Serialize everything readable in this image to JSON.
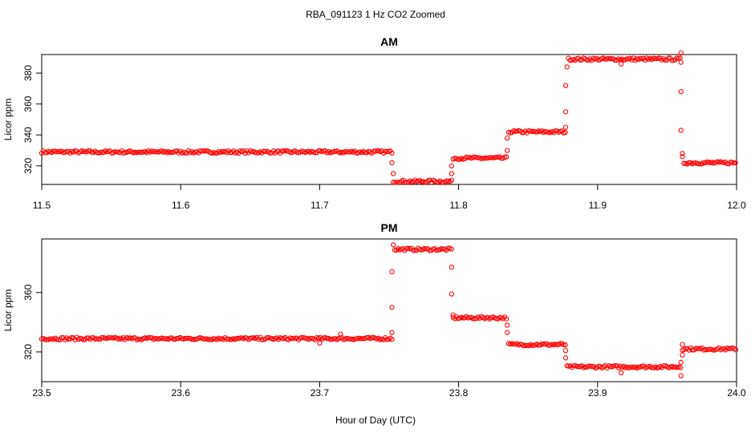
{
  "figure": {
    "title": "RBA_091123  1 Hz CO2 Zoomed",
    "xlabel": "Hour of Day (UTC)"
  },
  "colors": {
    "points": "#ff0000",
    "axes": "#000000",
    "background": "#ffffff"
  },
  "chart_data": [
    {
      "type": "scatter",
      "title": "AM",
      "xlabel": "Hour of Day (UTC)",
      "ylabel": "Licor ppm",
      "xlim": [
        11.5,
        12.0
      ],
      "ylim": [
        308,
        392
      ],
      "xticks": [
        "11.5",
        "11.6",
        "11.7",
        "11.8",
        "11.9",
        "12.0"
      ],
      "yticks": [
        "320",
        "340",
        "360",
        "380"
      ],
      "grid": false,
      "series": [
        {
          "segments": [
            {
              "x_start": 11.5,
              "x_end": 11.752,
              "y": 329
            },
            {
              "x_start": 11.753,
              "x_end": 11.795,
              "y": 310
            },
            {
              "x_start": 11.796,
              "x_end": 11.835,
              "y": 325
            },
            {
              "x_start": 11.836,
              "x_end": 11.877,
              "y": 342
            },
            {
              "x_start": 11.879,
              "x_end": 11.96,
              "y": 389
            },
            {
              "x_start": 11.962,
              "x_end": 12.0,
              "y": 322
            }
          ],
          "transitions": [
            {
              "x": 11.752,
              "y": 322
            },
            {
              "x": 11.753,
              "y": 315
            },
            {
              "x": 11.795,
              "y": 315
            },
            {
              "x": 11.795,
              "y": 320
            },
            {
              "x": 11.835,
              "y": 330
            },
            {
              "x": 11.835,
              "y": 338
            },
            {
              "x": 11.877,
              "y": 345
            },
            {
              "x": 11.877,
              "y": 355
            },
            {
              "x": 11.877,
              "y": 372
            },
            {
              "x": 11.878,
              "y": 384
            },
            {
              "x": 11.917,
              "y": 386
            },
            {
              "x": 11.96,
              "y": 393
            },
            {
              "x": 11.96,
              "y": 387
            },
            {
              "x": 11.96,
              "y": 368
            },
            {
              "x": 11.96,
              "y": 343
            },
            {
              "x": 11.961,
              "y": 328
            },
            {
              "x": 11.961,
              "y": 326
            }
          ]
        }
      ]
    },
    {
      "type": "scatter",
      "title": "PM",
      "xlabel": "Hour of Day (UTC)",
      "ylabel": "Licor ppm",
      "xlim": [
        23.5,
        24.0
      ],
      "ylim": [
        300,
        396
      ],
      "xticks": [
        "23.5",
        "23.6",
        "23.7",
        "23.8",
        "23.9",
        "24.0"
      ],
      "yticks": [
        "320",
        "360"
      ],
      "grid": false,
      "series": [
        {
          "segments": [
            {
              "x_start": 23.5,
              "x_end": 23.752,
              "y": 329
            },
            {
              "x_start": 23.754,
              "x_end": 23.795,
              "y": 389
            },
            {
              "x_start": 23.796,
              "x_end": 23.835,
              "y": 343
            },
            {
              "x_start": 23.836,
              "x_end": 23.877,
              "y": 325
            },
            {
              "x_start": 23.878,
              "x_end": 23.96,
              "y": 310
            },
            {
              "x_start": 23.961,
              "x_end": 24.0,
              "y": 322
            }
          ],
          "transitions": [
            {
              "x": 23.752,
              "y": 333
            },
            {
              "x": 23.752,
              "y": 350
            },
            {
              "x": 23.752,
              "y": 374
            },
            {
              "x": 23.753,
              "y": 392
            },
            {
              "x": 23.7,
              "y": 326
            },
            {
              "x": 23.715,
              "y": 332
            },
            {
              "x": 23.795,
              "y": 377
            },
            {
              "x": 23.795,
              "y": 359
            },
            {
              "x": 23.796,
              "y": 345
            },
            {
              "x": 23.835,
              "y": 338
            },
            {
              "x": 23.835,
              "y": 333
            },
            {
              "x": 23.877,
              "y": 321
            },
            {
              "x": 23.877,
              "y": 316
            },
            {
              "x": 23.917,
              "y": 306
            },
            {
              "x": 23.96,
              "y": 313
            },
            {
              "x": 23.96,
              "y": 304
            },
            {
              "x": 23.961,
              "y": 318
            },
            {
              "x": 23.961,
              "y": 325
            }
          ]
        }
      ]
    }
  ]
}
